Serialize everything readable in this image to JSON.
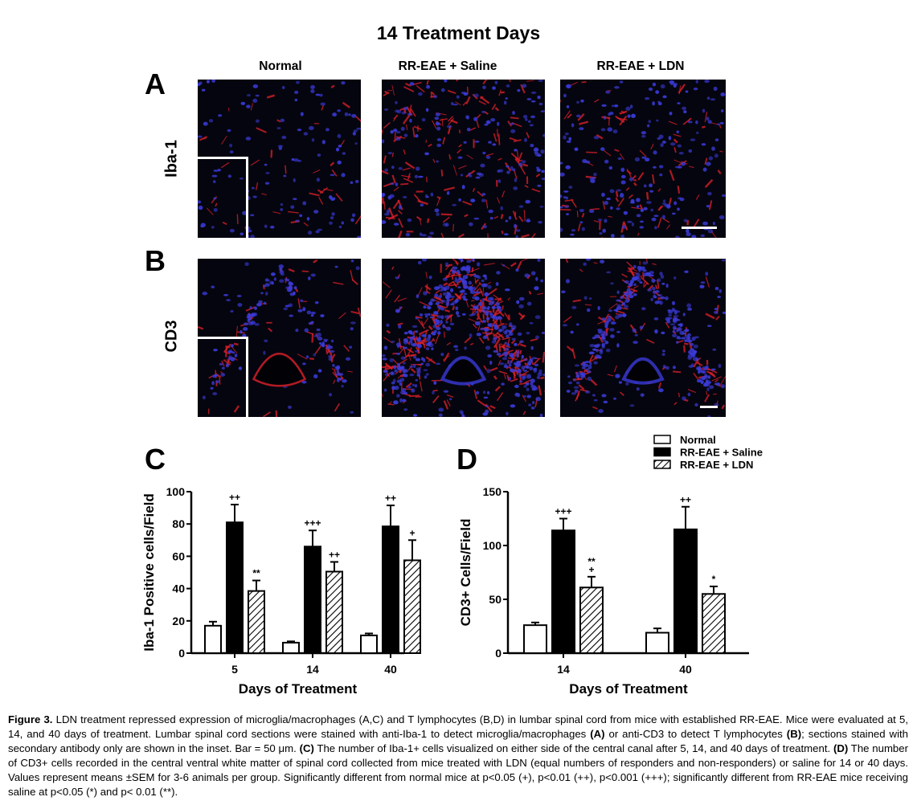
{
  "figure": {
    "title": "14 Treatment Days",
    "columns": [
      "Normal",
      "RR-EAE + Saline",
      "RR-EAE + LDN"
    ],
    "panel_a": {
      "letter": "A",
      "row_label": "Iba-1"
    },
    "panel_b": {
      "letter": "B",
      "row_label": "CD3"
    }
  },
  "legend": {
    "items": [
      "Normal",
      "RR-EAE + Saline",
      "RR-EAE + LDN"
    ]
  },
  "chart_data": [
    {
      "panel": "C",
      "type": "bar",
      "xlabel": "Days of Treatment",
      "ylabel": "Iba-1 Positive cells/Field",
      "categories": [
        "5",
        "14",
        "40"
      ],
      "ylim": [
        0,
        100
      ],
      "yticks": [
        0,
        20,
        40,
        60,
        80,
        100
      ],
      "series": [
        {
          "name": "Normal",
          "values": [
            17,
            6.5,
            11
          ],
          "errors": [
            2.5,
            0.8,
            1.2
          ],
          "annotations": [
            "",
            "",
            ""
          ]
        },
        {
          "name": "RR-EAE + Saline",
          "values": [
            81,
            66,
            78.5
          ],
          "errors": [
            11,
            10,
            13
          ],
          "annotations": [
            "++",
            "+++",
            "++"
          ]
        },
        {
          "name": "RR-EAE + LDN",
          "values": [
            38.5,
            50.5,
            57.5
          ],
          "errors": [
            6.5,
            6,
            12.5
          ],
          "annotations": [
            "**",
            "++",
            "+"
          ]
        }
      ]
    },
    {
      "panel": "D",
      "type": "bar",
      "xlabel": "Days of Treatment",
      "ylabel": "CD3+ Cells/Field",
      "categories": [
        "14",
        "40"
      ],
      "ylim": [
        0,
        150
      ],
      "yticks": [
        0,
        50,
        100,
        150
      ],
      "series": [
        {
          "name": "Normal",
          "values": [
            26,
            19
          ],
          "errors": [
            2.5,
            4
          ],
          "annotations": [
            "",
            ""
          ]
        },
        {
          "name": "RR-EAE + Saline",
          "values": [
            114,
            115
          ],
          "errors": [
            11,
            21
          ],
          "annotations": [
            "+++",
            "++"
          ]
        },
        {
          "name": "RR-EAE + LDN",
          "values": [
            61,
            55
          ],
          "errors": [
            10,
            7
          ],
          "annotations": [
            "**\n+",
            "*"
          ]
        }
      ]
    }
  ],
  "caption": {
    "label": "Figure 3.",
    "parts": [
      {
        "t": " LDN treatment repressed expression of microglia/macrophages (A,C) and T lymphocytes (B,D) in lumbar spinal cord from mice with established RR-EAE. Mice were evaluated at 5, 14, and 40 days of treatment. Lumbar spinal cord sections were stained with anti-Iba-1 to detect microglia/macrophages ",
        "b": false
      },
      {
        "t": "(A)",
        "b": true
      },
      {
        "t": " or anti-CD3 to detect T lymphocytes ",
        "b": false
      },
      {
        "t": "(B)",
        "b": true
      },
      {
        "t": "; sections stained with secondary antibody only are shown in the inset. Bar = 50 μm. ",
        "b": false
      },
      {
        "t": "(C)",
        "b": true
      },
      {
        "t": " The number of Iba-1+ cells visualized on either side of the central canal after 5, 14, and 40 days of treatment. ",
        "b": false
      },
      {
        "t": "(D)",
        "b": true
      },
      {
        "t": " The number of CD3+ cells recorded in the central ventral white matter of spinal cord collected from mice treated with LDN (equal numbers of responders and non-responders) or saline for 14 or 40 days. Values represent means ±SEM for 3-6 animals per group. Significantly different from normal mice at p<0.05 (+), p<0.01 (++), p<0.001 (+++); significantly different from RR-EAE mice receiving saline at p<0.05 (*) and p< 0.01 (**).",
        "b": false
      }
    ]
  },
  "colors": {
    "stain_red": "#e0202a",
    "stain_blue": "#3a3ad8",
    "bar_black": "#000000"
  }
}
